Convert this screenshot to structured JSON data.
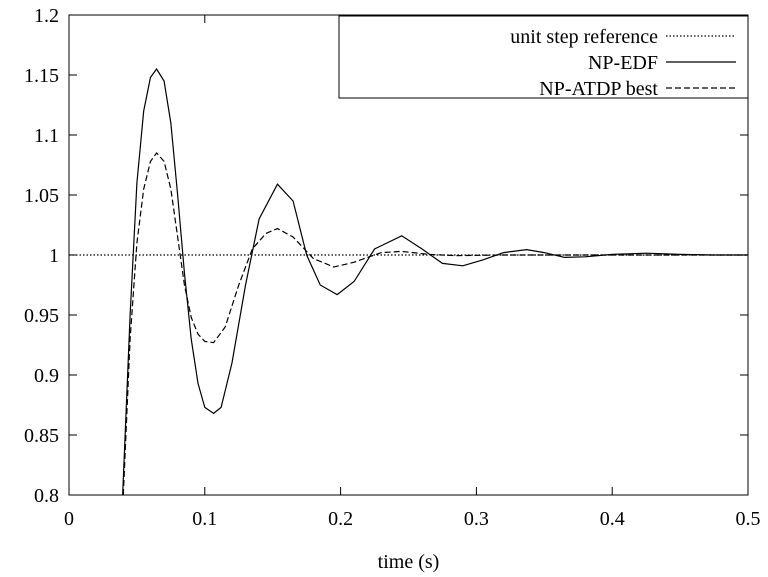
{
  "chart_data": {
    "type": "line",
    "title": "",
    "xlabel": "time (s)",
    "ylabel": "",
    "xlim": [
      0,
      0.5
    ],
    "ylim": [
      0.8,
      1.2
    ],
    "x_ticks": [
      "0",
      "0.1",
      "0.2",
      "0.3",
      "0.4",
      "0.5"
    ],
    "y_ticks": [
      "0.8",
      "0.85",
      "0.9",
      "0.95",
      "1",
      "1.05",
      "1.1",
      "1.15",
      "1.2"
    ],
    "grid": false,
    "legend_position": "top-right",
    "series": [
      {
        "name": "unit step reference",
        "style": "dotted",
        "color": "#000000",
        "points": [
          [
            0,
            1.0
          ],
          [
            0.5,
            1.0
          ]
        ]
      },
      {
        "name": "NP-EDF",
        "style": "solid",
        "color": "#000000",
        "points": [
          [
            0.0395,
            0.8
          ],
          [
            0.045,
            0.95
          ],
          [
            0.05,
            1.06
          ],
          [
            0.055,
            1.12
          ],
          [
            0.06,
            1.148
          ],
          [
            0.0645,
            1.155
          ],
          [
            0.07,
            1.145
          ],
          [
            0.075,
            1.11
          ],
          [
            0.08,
            1.05
          ],
          [
            0.085,
            0.985
          ],
          [
            0.09,
            0.93
          ],
          [
            0.095,
            0.893
          ],
          [
            0.1,
            0.873
          ],
          [
            0.1065,
            0.868
          ],
          [
            0.112,
            0.873
          ],
          [
            0.12,
            0.91
          ],
          [
            0.13,
            0.975
          ],
          [
            0.14,
            1.03
          ],
          [
            0.1535,
            1.059
          ],
          [
            0.165,
            1.045
          ],
          [
            0.175,
            1.0
          ],
          [
            0.185,
            0.975
          ],
          [
            0.1975,
            0.967
          ],
          [
            0.21,
            0.978
          ],
          [
            0.225,
            1.005
          ],
          [
            0.245,
            1.016
          ],
          [
            0.26,
            1.005
          ],
          [
            0.275,
            0.993
          ],
          [
            0.29,
            0.991
          ],
          [
            0.305,
            0.996
          ],
          [
            0.32,
            1.002
          ],
          [
            0.337,
            1.0045
          ],
          [
            0.35,
            1.002
          ],
          [
            0.365,
            0.998
          ],
          [
            0.38,
            0.9985
          ],
          [
            0.4,
            1.0005
          ],
          [
            0.425,
            1.0015
          ],
          [
            0.45,
            1.0005
          ],
          [
            0.475,
            1.0
          ],
          [
            0.5,
            1.0
          ]
        ]
      },
      {
        "name": "NP-ATDP best",
        "style": "dashed",
        "color": "#000000",
        "points": [
          [
            0.04,
            0.8
          ],
          [
            0.045,
            0.93
          ],
          [
            0.05,
            1.01
          ],
          [
            0.055,
            1.055
          ],
          [
            0.06,
            1.078
          ],
          [
            0.0645,
            1.085
          ],
          [
            0.07,
            1.078
          ],
          [
            0.075,
            1.055
          ],
          [
            0.08,
            1.015
          ],
          [
            0.085,
            0.975
          ],
          [
            0.09,
            0.948
          ],
          [
            0.095,
            0.934
          ],
          [
            0.1,
            0.928
          ],
          [
            0.1065,
            0.927
          ],
          [
            0.115,
            0.94
          ],
          [
            0.125,
            0.975
          ],
          [
            0.135,
            1.005
          ],
          [
            0.145,
            1.018
          ],
          [
            0.1535,
            1.022
          ],
          [
            0.165,
            1.015
          ],
          [
            0.18,
            0.997
          ],
          [
            0.195,
            0.99
          ],
          [
            0.21,
            0.994
          ],
          [
            0.23,
            1.002
          ],
          [
            0.245,
            1.003
          ],
          [
            0.265,
            1.0005
          ],
          [
            0.285,
            0.9995
          ],
          [
            0.32,
            1.0
          ],
          [
            0.4,
            1.0
          ],
          [
            0.5,
            1.0
          ]
        ]
      }
    ]
  }
}
